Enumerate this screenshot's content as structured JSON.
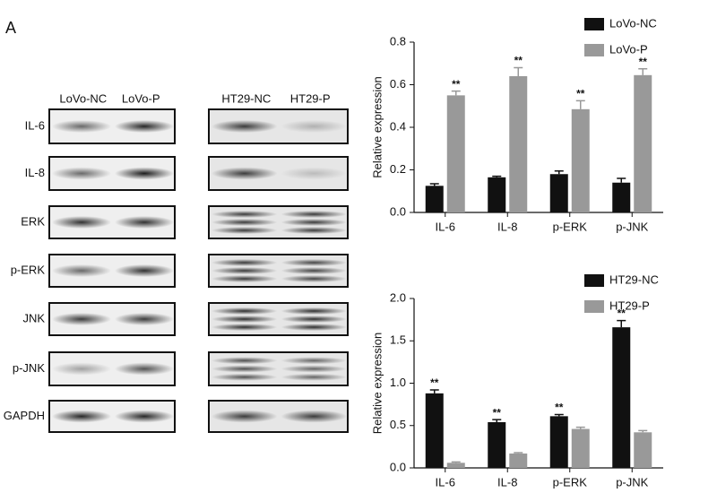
{
  "panel_label": "A",
  "blots": {
    "rows": [
      "IL-6",
      "IL-8",
      "ERK",
      "p-ERK",
      "JNK",
      "p-JNK",
      "GAPDH"
    ],
    "lanes": [
      "LoVo-NC",
      "LoVo-P",
      "HT29-NC",
      "HT29-P"
    ]
  },
  "chart_data": [
    {
      "type": "bar",
      "y_label": "Relative expression",
      "legend": "top-right",
      "categories": [
        "IL-6",
        "IL-8",
        "p-ERK",
        "p-JNK"
      ],
      "series": [
        {
          "name": "LoVo-NC",
          "color": "#111111",
          "values": [
            0.125,
            0.165,
            0.18,
            0.14
          ],
          "errors": [
            0.01,
            0.005,
            0.015,
            0.02
          ]
        },
        {
          "name": "LoVo-P",
          "color": "#999999",
          "values": [
            0.55,
            0.64,
            0.485,
            0.645
          ],
          "errors": [
            0.02,
            0.04,
            0.04,
            0.03
          ],
          "significance": [
            "**",
            "**",
            "**",
            "**"
          ]
        }
      ],
      "ylim": [
        0,
        0.8
      ],
      "yticks": [
        {
          "value": 0,
          "label": "0.0"
        },
        0.2,
        0.4,
        0.6,
        0.8
      ]
    },
    {
      "type": "bar",
      "y_label": "Relative expression",
      "legend": "top-right",
      "categories": [
        "IL-6",
        "IL-8",
        "p-ERK",
        "p-JNK"
      ],
      "series": [
        {
          "name": "HT29-NC",
          "color": "#111111",
          "values": [
            0.88,
            0.54,
            0.61,
            1.66
          ],
          "errors": [
            0.04,
            0.03,
            0.02,
            0.08
          ],
          "significance": [
            "**",
            "**",
            "**",
            "**"
          ]
        },
        {
          "name": "HT29-P",
          "color": "#999999",
          "values": [
            0.06,
            0.17,
            0.46,
            0.42
          ],
          "errors": [
            0.01,
            0.01,
            0.02,
            0.02
          ]
        }
      ],
      "ylim": [
        0,
        2
      ],
      "yticks": [
        {
          "value": 0,
          "label": "0.0"
        },
        0.5,
        {
          "value": 1,
          "label": "1.0"
        },
        1.5,
        {
          "value": 2,
          "label": "2.0"
        }
      ]
    }
  ]
}
